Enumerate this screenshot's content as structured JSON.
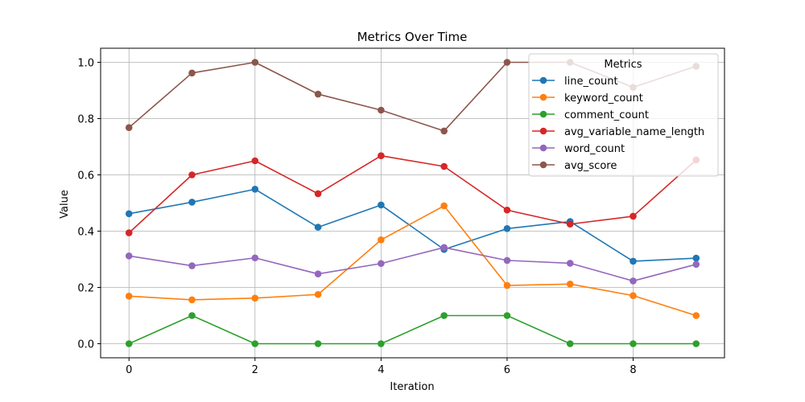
{
  "chart_data": {
    "type": "line",
    "title": "Metrics Over Time",
    "xlabel": "Iteration",
    "ylabel": "Value",
    "xlim": [
      -0.45,
      9.45
    ],
    "ylim": [
      -0.05,
      1.05
    ],
    "x_ticks": [
      0,
      2,
      4,
      6,
      8
    ],
    "y_ticks": [
      "0.0",
      "0.2",
      "0.4",
      "0.6",
      "0.8",
      "1.0"
    ],
    "grid": true,
    "legend_title": "Metrics",
    "legend_position": "top-right",
    "x": [
      0,
      1,
      2,
      3,
      4,
      5,
      6,
      7,
      8,
      9
    ],
    "series": [
      {
        "name": "line_count",
        "color": "#1f77b4",
        "values": [
          0.462,
          0.503,
          0.549,
          0.414,
          0.493,
          0.335,
          0.409,
          0.434,
          0.293,
          0.304
        ]
      },
      {
        "name": "keyword_count",
        "color": "#ff7f0e",
        "values": [
          0.169,
          0.156,
          0.162,
          0.175,
          0.369,
          0.49,
          0.207,
          0.212,
          0.171,
          0.1
        ]
      },
      {
        "name": "comment_count",
        "color": "#2ca02c",
        "values": [
          0.0,
          0.1,
          0.0,
          0.0,
          0.0,
          0.1,
          0.1,
          0.0,
          0.0,
          0.0
        ]
      },
      {
        "name": "avg_variable_name_length",
        "color": "#d62728",
        "values": [
          0.394,
          0.6,
          0.65,
          0.533,
          0.668,
          0.63,
          0.475,
          0.425,
          0.453,
          0.653
        ]
      },
      {
        "name": "word_count",
        "color": "#9467bd",
        "values": [
          0.312,
          0.277,
          0.305,
          0.248,
          0.285,
          0.342,
          0.296,
          0.286,
          0.223,
          0.282
        ]
      },
      {
        "name": "avg_score",
        "color": "#8c564b",
        "values": [
          0.768,
          0.962,
          1.0,
          0.887,
          0.83,
          0.756,
          1.0,
          1.0,
          0.911,
          0.986
        ]
      }
    ]
  }
}
